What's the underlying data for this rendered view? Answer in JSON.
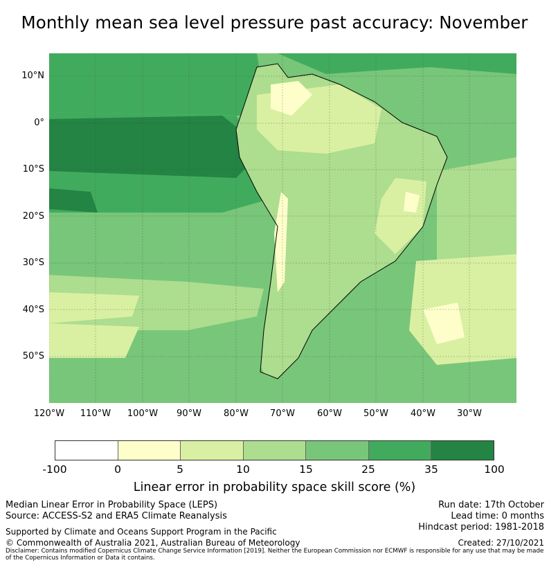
{
  "title": "Monthly mean sea level pressure past accuracy: November",
  "map": {
    "lat_labels": [
      "10°N",
      "0°",
      "10°S",
      "20°S",
      "30°S",
      "40°S",
      "50°S"
    ],
    "lon_labels": [
      "120°W",
      "110°W",
      "100°W",
      "90°W",
      "80°W",
      "70°W",
      "60°W",
      "50°W",
      "40°W",
      "30°W"
    ],
    "extent": {
      "lon_min": -120,
      "lon_max": -20,
      "lat_min": -60,
      "lat_max": 15
    }
  },
  "colorbar": {
    "ticks": [
      "-100",
      "0",
      "5",
      "10",
      "15",
      "25",
      "35",
      "100"
    ],
    "colors": [
      "#ffffff",
      "#fefecb",
      "#d9f0a2",
      "#addd8e",
      "#78c679",
      "#41ab5d",
      "#238443"
    ],
    "label": "Linear error in probability space skill score (%)"
  },
  "footer": {
    "left_line1": "Median Linear Error in Probability Space (LEPS)",
    "left_line2": "Source: ACCESS-S2 and ERA5 Climate Reanalysis",
    "right_line1": "Run date: 17th October",
    "right_line2": "Lead time: 0 months",
    "right_line3": "Hindcast period: 1981-2018",
    "support": "Supported by Climate and Oceans Support Program in the Pacific",
    "copyright": "© Commonwealth of Australia 2021, Australian Bureau of Meteorology",
    "created": "Created: 27/10/2021",
    "disclaimer": "Disclaimer: Contains modified Copernicus Climate Change Service Information [2019]. Neither the European Commission nor ECMWF is responsible for any use that may be made of the Copernicus Information or Data it contains."
  }
}
